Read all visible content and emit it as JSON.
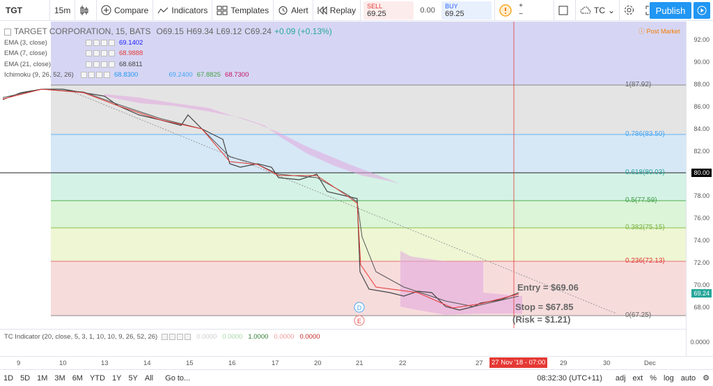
{
  "toolbar": {
    "symbol": "TGT",
    "interval": "15m",
    "compare": "Compare",
    "indicators": "Indicators",
    "templates": "Templates",
    "alert": "Alert",
    "replay": "Replay",
    "sell_label": "SELL",
    "sell_price": "69.25",
    "spread": "0.00",
    "buy_label": "BUY",
    "buy_price": "69.25",
    "layout_name": "TC",
    "publish": "Publish"
  },
  "legend": {
    "symbol_name": "TARGET CORPORATION, 15, BATS",
    "open": "O69.15",
    "high": "H69.34",
    "low": "L69.12",
    "close": "C69.24",
    "change": "+0.09 (+0.13%)",
    "ema3": {
      "label": "EMA (3, close)",
      "value": "69.1402",
      "color": "#1a1aff"
    },
    "ema7": {
      "label": "EMA (7, close)",
      "value": "68.9888",
      "color": "#e53935"
    },
    "ema21": {
      "label": "EMA (21, close)",
      "value": "68.6811",
      "color": "#444"
    },
    "ichimoku": {
      "label": "Ichimoku (9, 26, 52, 26)",
      "v1": "68.8300",
      "v2": "69.2400",
      "v3": "67.8825",
      "v4": "68.7300"
    },
    "post_market": "Post Market"
  },
  "fib": {
    "l1": "1(87.92)",
    "l786": "0.786(83.50)",
    "l618": "0.618(80.03)",
    "l5": "0.5(77.59)",
    "l382": "0.382(75.15)",
    "l236": "0.236(72.13)",
    "l0": "0(67.25)"
  },
  "notes": {
    "entry": "Entry = $69.06",
    "stop": "Stop = $67.85",
    "risk": "(Risk = $1.21)"
  },
  "price_scale": [
    "92.00",
    "90.00",
    "88.00",
    "86.00",
    "84.00",
    "82.00",
    "80.00",
    "78.00",
    "76.00",
    "74.00",
    "72.00",
    "70.00",
    "68.00"
  ],
  "price_markers": {
    "horizontal_line": "80.00",
    "last_price": "69.24"
  },
  "sub_indicator": {
    "label": "TC Indicator (20, close, 5, 3, 1, 10, 10, 9, 26, 52, 26)",
    "values": [
      "0.0000",
      "0.0000",
      "1.0000",
      "0.0000",
      "0.0000"
    ],
    "scale": "0.0000"
  },
  "time_axis": [
    "9",
    "10",
    "13",
    "14",
    "15",
    "16",
    "17",
    "20",
    "21",
    "22",
    "27",
    "29",
    "30",
    "Dec"
  ],
  "time_marker": "27 Nov '18 - 07:00",
  "markers": {
    "d": "D",
    "e": "E"
  },
  "bottom": {
    "ranges": [
      "1D",
      "5D",
      "1M",
      "3M",
      "6M",
      "YTD",
      "1Y",
      "5Y",
      "All"
    ],
    "goto": "Go to...",
    "clock": "08:32:30 (UTC+11)",
    "adj": "adj",
    "ext": "ext",
    "pct": "%",
    "log": "log",
    "auto": "auto"
  }
}
